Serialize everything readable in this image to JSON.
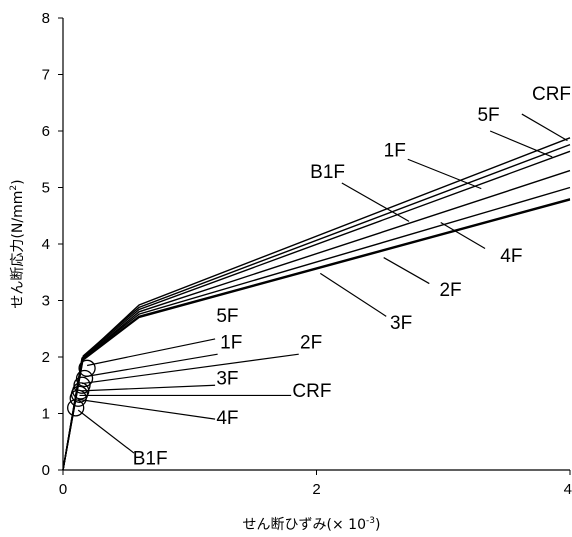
{
  "chart_data": {
    "type": "line",
    "xlabel_main": "せん断ひずみ(",
    "xlabel_mult": "×",
    "xlabel_base": " 10",
    "xlabel_exp": "-3",
    "xlabel_close": ")",
    "ylabel_main": "せん断応力(N/mm",
    "ylabel_exp": "2",
    "ylabel_close": ")",
    "xlim": [
      0,
      4
    ],
    "ylim": [
      0,
      8
    ],
    "xticks": [
      "0",
      "2",
      "4"
    ],
    "xtick_values": [
      0,
      2,
      4
    ],
    "yticks": [
      "0",
      "1",
      "2",
      "3",
      "4",
      "5",
      "6",
      "7",
      "8"
    ],
    "ytick_values": [
      0,
      1,
      2,
      3,
      4,
      5,
      6,
      7,
      8
    ],
    "series": [
      {
        "name": "CRF",
        "x": [
          0,
          0.15,
          0.6,
          4.0
        ],
        "y": [
          0,
          1.98,
          2.92,
          5.88
        ]
      },
      {
        "name": "5F",
        "x": [
          0,
          0.16,
          0.6,
          4.0
        ],
        "y": [
          0,
          2.02,
          2.88,
          5.76
        ]
      },
      {
        "name": "1F",
        "x": [
          0,
          0.16,
          0.6,
          4.0
        ],
        "y": [
          0,
          2.0,
          2.84,
          5.64
        ]
      },
      {
        "name": "B1F",
        "x": [
          0,
          0.15,
          0.6,
          4.0
        ],
        "y": [
          0,
          1.96,
          2.8,
          5.3
        ]
      },
      {
        "name": "4F",
        "x": [
          0,
          0.16,
          0.6,
          4.0
        ],
        "y": [
          0,
          1.98,
          2.76,
          5.0
        ]
      },
      {
        "name": "2F",
        "x": [
          0,
          0.15,
          0.6,
          4.0
        ],
        "y": [
          0,
          1.95,
          2.72,
          4.8
        ]
      },
      {
        "name": "3F",
        "x": [
          0,
          0.15,
          0.6,
          4.0
        ],
        "y": [
          0,
          1.93,
          2.7,
          4.78
        ]
      }
    ],
    "yield_points": [
      {
        "name": "5F",
        "x": 0.19,
        "y": 1.8
      },
      {
        "name": "1F",
        "x": 0.17,
        "y": 1.62
      },
      {
        "name": "2F",
        "x": 0.15,
        "y": 1.5
      },
      {
        "name": "3F",
        "x": 0.14,
        "y": 1.4
      },
      {
        "name": "CRF",
        "x": 0.13,
        "y": 1.34
      },
      {
        "name": "4F",
        "x": 0.12,
        "y": 1.27
      },
      {
        "name": "B1F",
        "x": 0.1,
        "y": 1.1
      }
    ],
    "upper_labels": [
      {
        "text": "CRF",
        "tx": 3.7,
        "ty": 6.55,
        "ax": 3.98,
        "ay": 5.83,
        "sx": 3.62,
        "sy": 6.3
      },
      {
        "text": "5F",
        "tx": 3.27,
        "ty": 6.18,
        "ax": 3.86,
        "ay": 5.54,
        "sx": 3.37,
        "sy": 6.0
      },
      {
        "text": "1F",
        "tx": 2.53,
        "ty": 5.55,
        "ax": 3.3,
        "ay": 4.98,
        "sx": 2.72,
        "sy": 5.5
      },
      {
        "text": "B1F",
        "tx": 1.95,
        "ty": 5.17,
        "ax": 2.73,
        "ay": 4.4,
        "sx": 2.2,
        "sy": 5.08
      },
      {
        "text": "4F",
        "tx": 3.45,
        "ty": 3.68,
        "ax": 2.98,
        "ay": 4.38,
        "sx": 3.33,
        "sy": 3.92
      },
      {
        "text": "2F",
        "tx": 2.97,
        "ty": 3.08,
        "ax": 2.53,
        "ay": 3.76,
        "sx": 2.89,
        "sy": 3.3
      },
      {
        "text": "3F",
        "tx": 2.58,
        "ty": 2.5,
        "ax": 2.03,
        "ay": 3.48,
        "sx": 2.55,
        "sy": 2.72
      }
    ],
    "lower_labels": [
      {
        "text": "5F",
        "tx": 1.21,
        "ty": 2.62,
        "ax": 0.19,
        "ay": 1.85,
        "sx": 1.2,
        "sy": 2.32
      },
      {
        "text": "1F",
        "tx": 1.24,
        "ty": 2.15,
        "ax": 0.17,
        "ay": 1.65,
        "sx": 1.22,
        "sy": 2.05
      },
      {
        "text": "2F",
        "tx": 1.87,
        "ty": 2.15,
        "ax": 0.15,
        "ay": 1.53,
        "sx": 1.86,
        "sy": 2.05
      },
      {
        "text": "3F",
        "tx": 1.21,
        "ty": 1.51,
        "ax": 0.14,
        "ay": 1.4,
        "sx": 1.2,
        "sy": 1.5
      },
      {
        "text": "CRF",
        "tx": 1.81,
        "ty": 1.29,
        "ax": 0.13,
        "ay": 1.32,
        "sx": 1.8,
        "sy": 1.32
      },
      {
        "text": "4F",
        "tx": 1.21,
        "ty": 0.81,
        "ax": 0.12,
        "ay": 1.25,
        "sx": 1.2,
        "sy": 0.9
      },
      {
        "text": "B1F",
        "tx": 0.55,
        "ty": 0.1,
        "ax": 0.12,
        "ay": 1.06,
        "sx": 0.56,
        "sy": 0.3
      }
    ]
  }
}
